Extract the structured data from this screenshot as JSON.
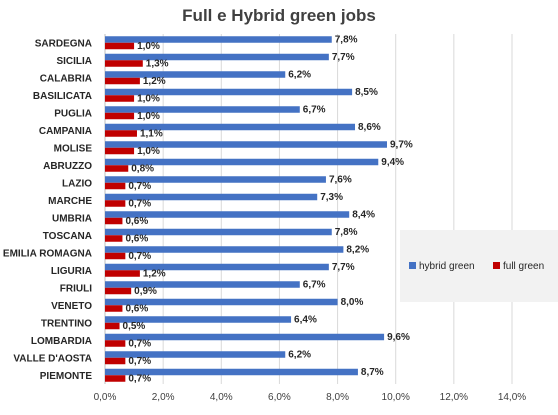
{
  "chart_data": {
    "type": "bar",
    "orientation": "horizontal",
    "title": "Full e Hybrid green jobs",
    "categories": [
      "SARDEGNA",
      "SICILIA",
      "CALABRIA",
      "BASILICATA",
      "PUGLIA",
      "CAMPANIA",
      "MOLISE",
      "ABRUZZO",
      "LAZIO",
      "MARCHE",
      "UMBRIA",
      "TOSCANA",
      "EMILIA ROMAGNA",
      "LIGURIA",
      "FRIULI",
      "VENETO",
      "TRENTINO",
      "LOMBARDIA",
      "VALLE D'AOSTA",
      "PIEMONTE"
    ],
    "series": [
      {
        "name": "hybrid green",
        "color": "#4472c4",
        "values": [
          7.8,
          7.7,
          6.2,
          8.5,
          6.7,
          8.6,
          9.7,
          9.4,
          7.6,
          7.3,
          8.4,
          7.8,
          8.2,
          7.7,
          6.7,
          8.0,
          6.4,
          9.6,
          6.2,
          8.7
        ],
        "labels": [
          "7,8%",
          "7,7%",
          "6,2%",
          "8,5%",
          "6,7%",
          "8,6%",
          "9,7%",
          "9,4%",
          "7,6%",
          "7,3%",
          "8,4%",
          "7,8%",
          "8,2%",
          "7,7%",
          "6,7%",
          "8,0%",
          "6,4%",
          "9,6%",
          "6,2%",
          "8,7%"
        ]
      },
      {
        "name": "full green",
        "color": "#c00000",
        "values": [
          1.0,
          1.3,
          1.2,
          1.0,
          1.0,
          1.1,
          1.0,
          0.8,
          0.7,
          0.7,
          0.6,
          0.6,
          0.7,
          1.2,
          0.9,
          0.6,
          0.5,
          0.7,
          0.7,
          0.7
        ],
        "labels": [
          "1,0%",
          "1,3%",
          "1,2%",
          "1,0%",
          "1,0%",
          "1,1%",
          "1,0%",
          "0,8%",
          "0,7%",
          "0,7%",
          "0,6%",
          "0,6%",
          "0,7%",
          "1,2%",
          "0,9%",
          "0,6%",
          "0,5%",
          "0,7%",
          "0,7%",
          "0,7%"
        ]
      }
    ],
    "xlim": [
      0,
      14
    ],
    "xticks": [
      "0,0%",
      "2,0%",
      "4,0%",
      "6,0%",
      "8,0%",
      "10,0%",
      "12,0%",
      "14,0%"
    ],
    "grid": true,
    "legend": "right"
  }
}
